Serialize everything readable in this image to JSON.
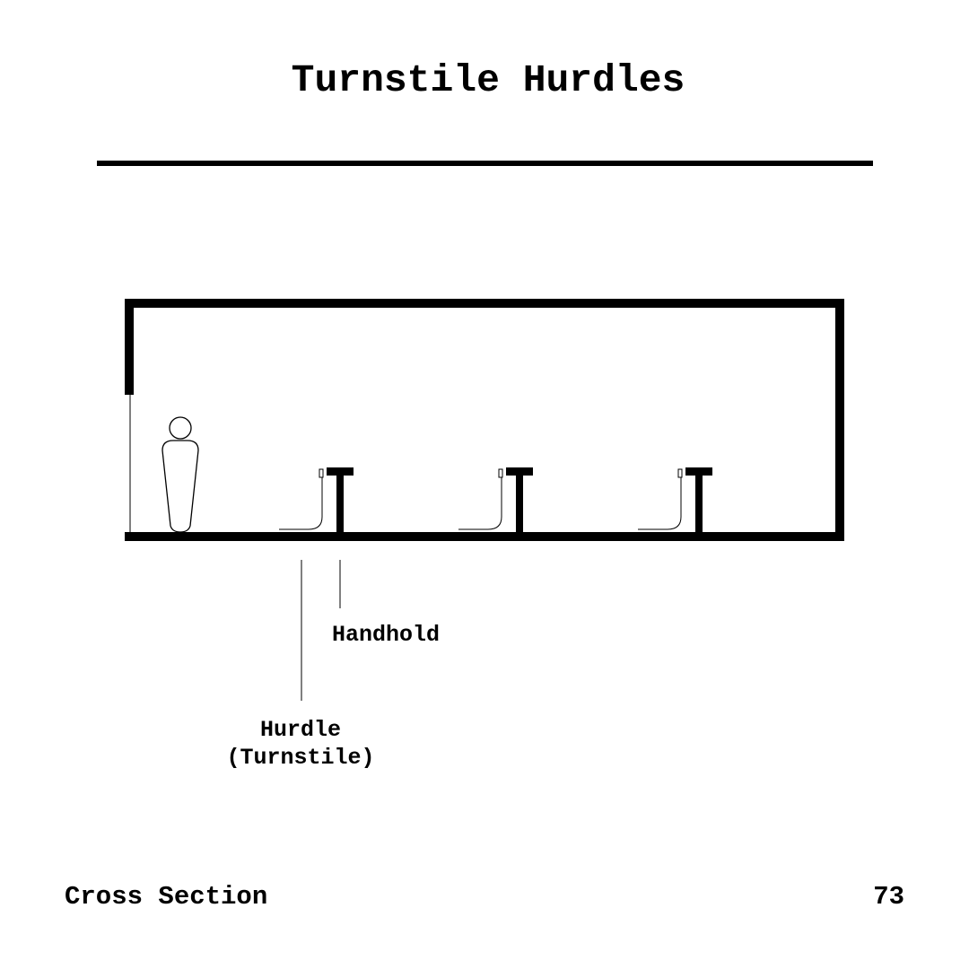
{
  "title": "Turnstile Hurdles",
  "labels": {
    "handhold": "Handhold",
    "hurdle_line1": "Hurdle",
    "hurdle_line2": "(Turnstile)"
  },
  "footer": {
    "section": "Cross Section",
    "page_number": "73"
  },
  "diagram": {
    "hurdle_count": 3,
    "has_person": true
  }
}
